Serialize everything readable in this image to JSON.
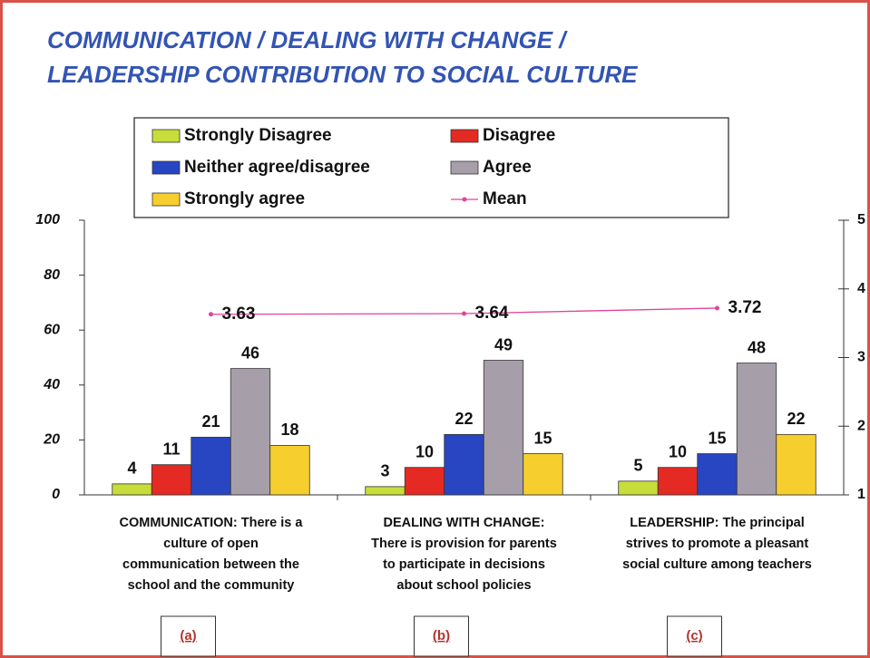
{
  "chart_data": {
    "type": "bar",
    "title": [
      "COMMUNICATION / DEALING WITH CHANGE /",
      "LEADERSHIP CONTRIBUTION TO SOCIAL CULTURE"
    ],
    "categories": [
      [
        "COMMUNICATION:  There is a",
        "culture of open",
        "communication between the",
        "school and the community"
      ],
      [
        "DEALING WITH CHANGE:",
        "There is provision for parents",
        "to participate in decisions",
        "about school policies"
      ],
      [
        "LEADERSHIP:  The principal",
        "strives to promote a pleasant",
        "social culture among teachers"
      ]
    ],
    "series": [
      {
        "name": "Strongly Disagree",
        "color": "#c6dd3a",
        "values": [
          4,
          3,
          5
        ]
      },
      {
        "name": "Disagree",
        "color": "#e42a22",
        "values": [
          11,
          10,
          10
        ]
      },
      {
        "name": "Neither agree/disagree",
        "color": "#2845c2",
        "values": [
          21,
          22,
          15
        ]
      },
      {
        "name": "Agree",
        "color": "#a69ea8",
        "values": [
          46,
          49,
          48
        ]
      },
      {
        "name": "Strongly agree",
        "color": "#f6cf2e",
        "values": [
          18,
          15,
          22
        ]
      },
      {
        "name": "Mean",
        "color": "#e0449a",
        "type": "line",
        "axis": "y2",
        "values": [
          3.63,
          3.64,
          3.72
        ]
      }
    ],
    "ylim": [
      0,
      100
    ],
    "yticks": [
      0,
      20,
      40,
      60,
      80,
      100
    ],
    "y2lim": [
      1,
      5
    ],
    "y2ticks": [
      1,
      2,
      3,
      4,
      5
    ],
    "panel_labels": [
      "(a)",
      "(b)",
      "(c)"
    ]
  }
}
